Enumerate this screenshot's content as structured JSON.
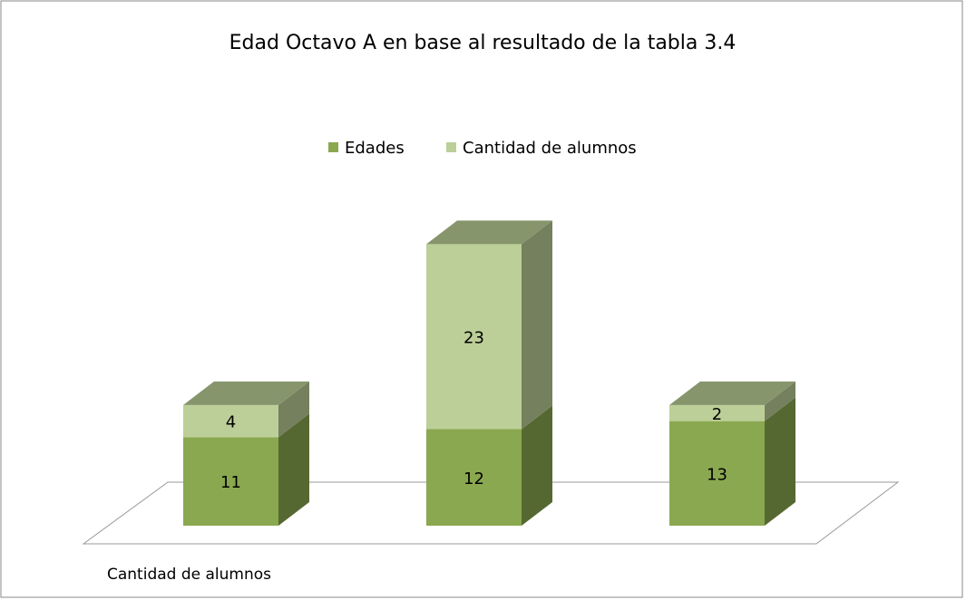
{
  "chart_data": {
    "type": "bar3d_stacked",
    "title": "Edad Octavo A en base al resultado de la tabla 3.4",
    "x_label": "Cantidad de alumnos",
    "categories": [
      null,
      null,
      null
    ],
    "series": [
      {
        "name": "Edades",
        "color": "#8aa84f",
        "values": [
          11,
          12,
          13
        ]
      },
      {
        "name": "Cantidad de alumnos",
        "color": "#bccf98",
        "values": [
          4,
          23,
          2
        ]
      }
    ],
    "ylim": [
      0,
      40
    ],
    "legend": "top"
  }
}
